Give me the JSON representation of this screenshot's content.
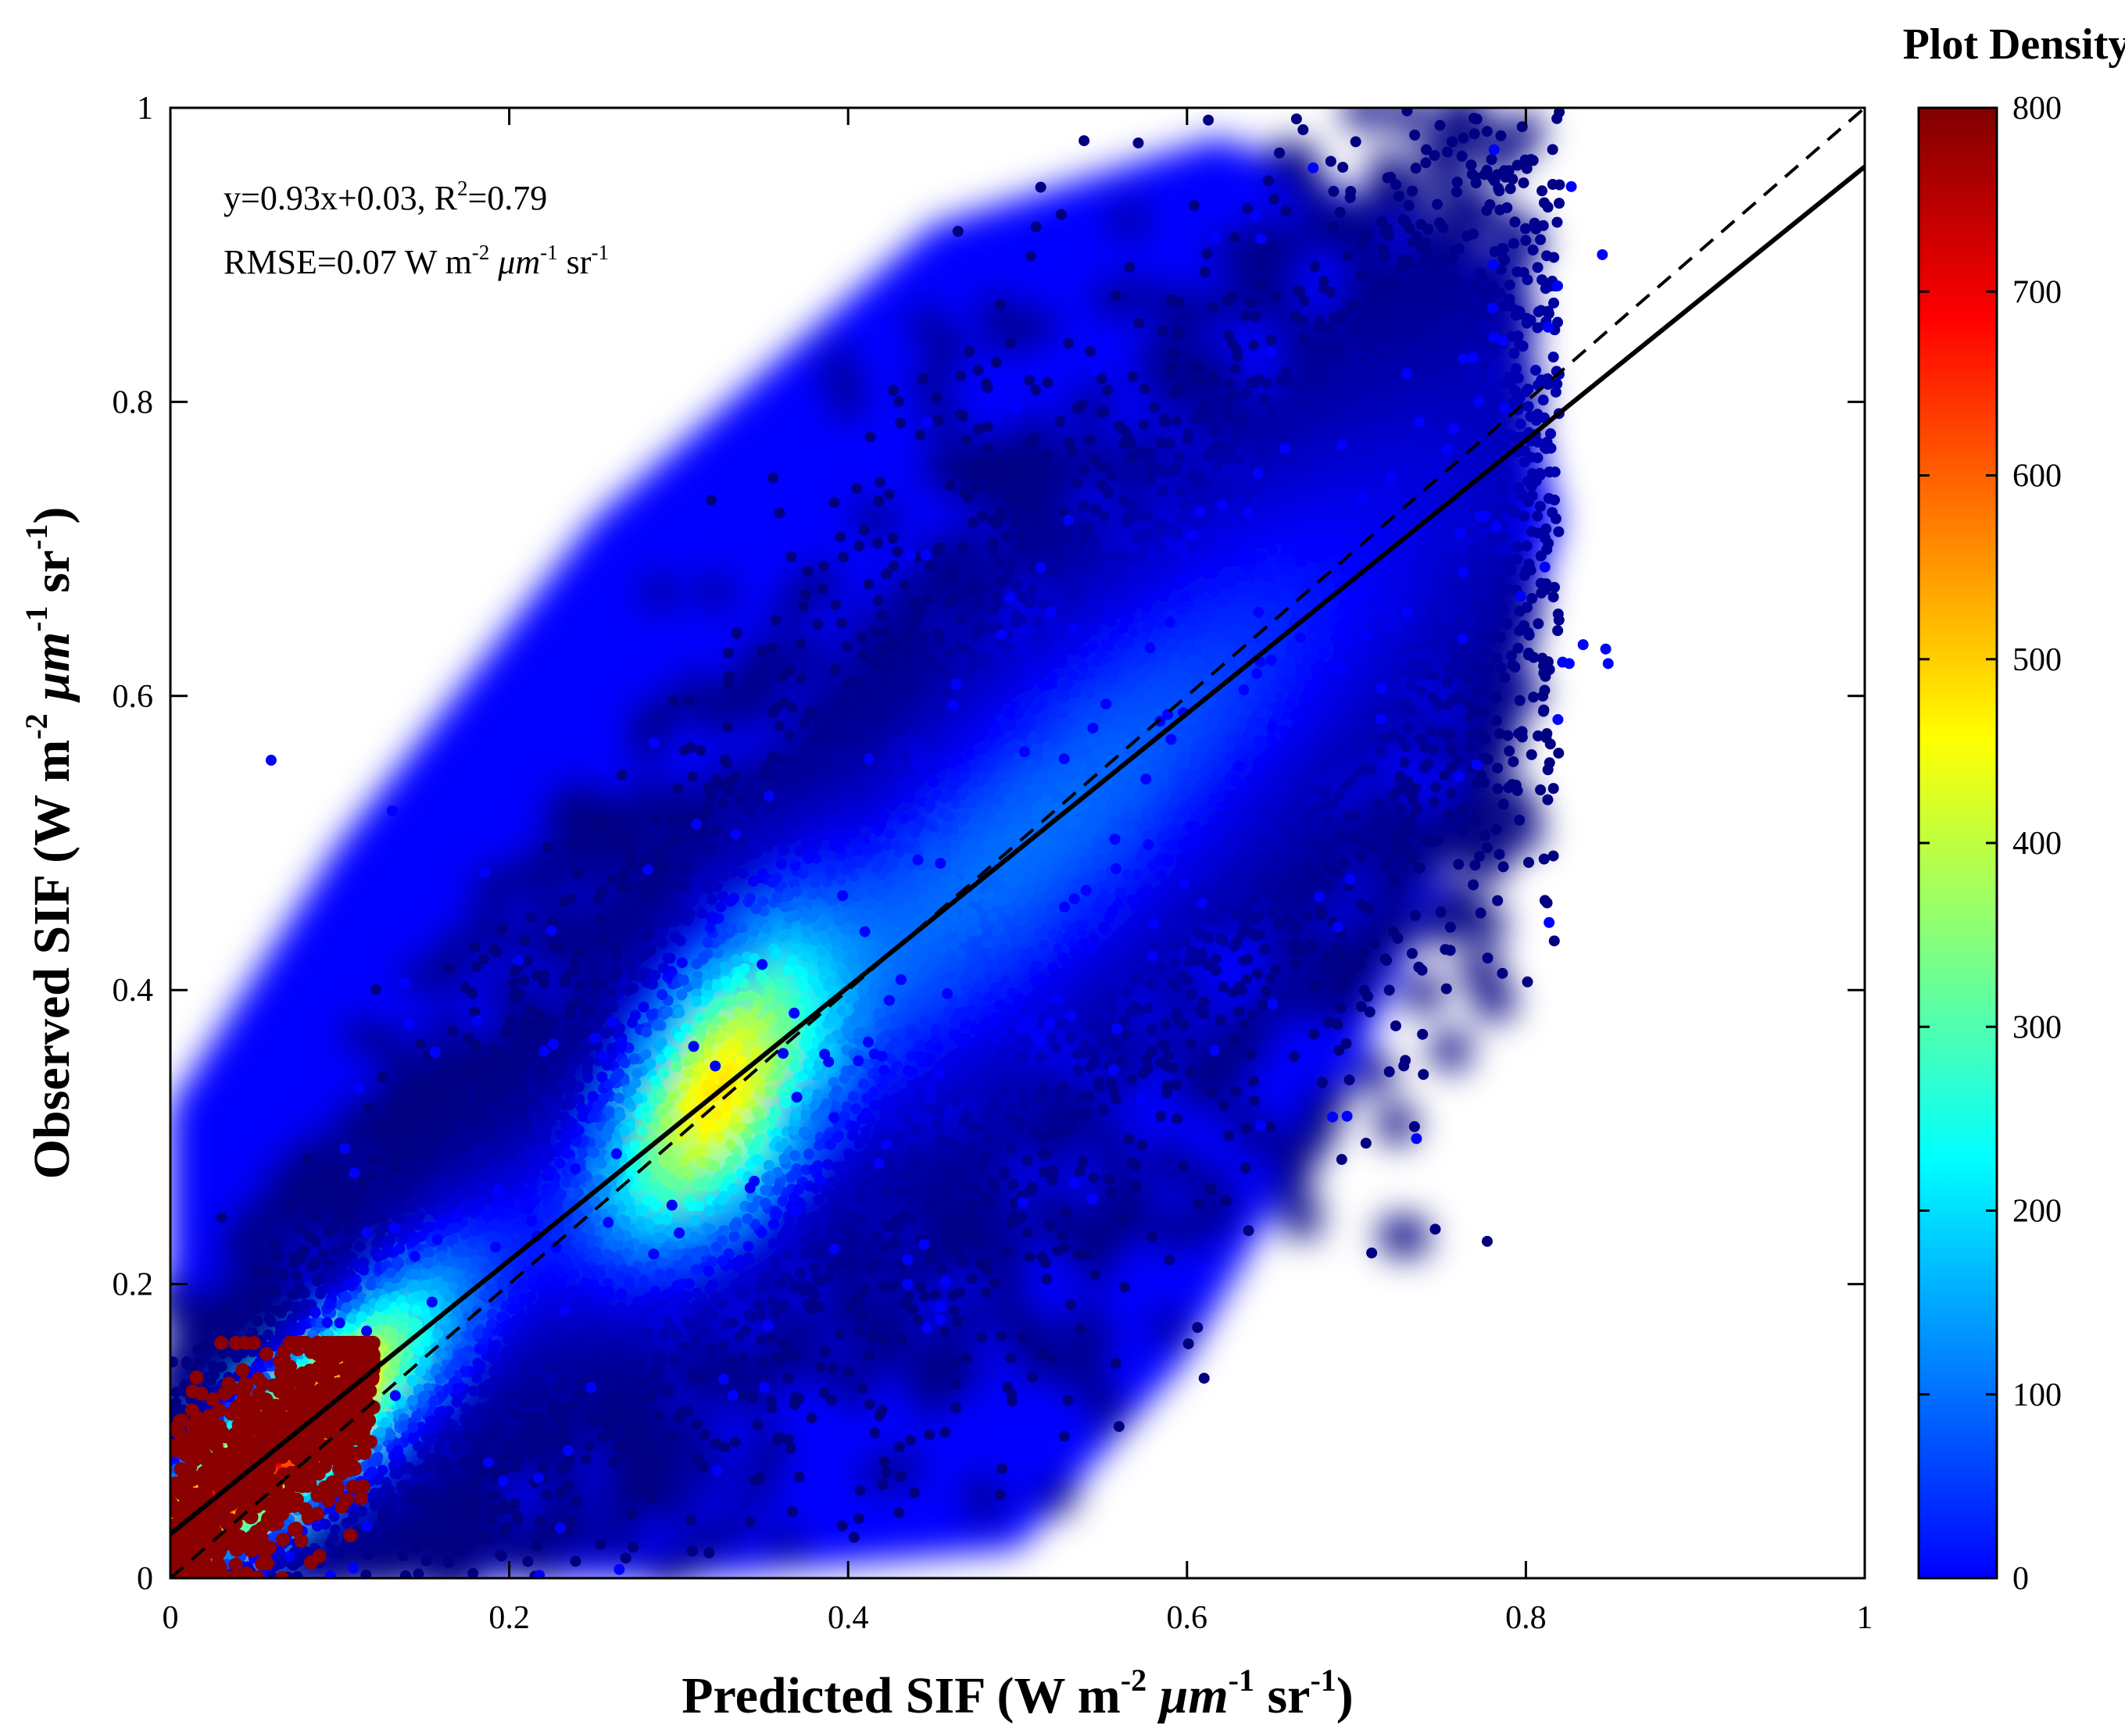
{
  "chart_data": {
    "type": "scatter",
    "subtype": "density-scatter",
    "xlabel": {
      "main": "Predicted SIF (W m",
      "sup1": "-2",
      "mid": " μm",
      "sup2": "-1",
      "end": " sr",
      "sup3": "-1",
      "close": ")"
    },
    "ylabel": {
      "main": "Observed SIF (W m",
      "sup1": "-2",
      "mid": " μm",
      "sup2": "-1",
      "end": " sr",
      "sup3": "-1",
      "close": ")"
    },
    "xlim": [
      0,
      1
    ],
    "ylim": [
      0,
      1
    ],
    "x_ticks": [
      0,
      0.2,
      0.4,
      0.6,
      0.8,
      1
    ],
    "x_tick_labels": [
      "0",
      "0.2",
      "0.4",
      "0.6",
      "0.8",
      "1"
    ],
    "y_ticks": [
      0,
      0.2,
      0.4,
      0.6,
      0.8,
      1
    ],
    "y_tick_labels": [
      "0",
      "0.2",
      "0.4",
      "0.6",
      "0.8",
      "1"
    ],
    "grid": false,
    "fit_line": {
      "slope": 0.93,
      "intercept": 0.03,
      "style": "solid",
      "color": "#000000"
    },
    "one_to_one_line": {
      "slope": 1,
      "intercept": 0,
      "style": "dashed",
      "color": "#000000"
    },
    "annotations": {
      "eq_text": "y=0.93x+0.03, R",
      "r2_sup": "2",
      "r2_text": "=0.79",
      "rmse_text": "RMSE=0.07 W m",
      "rmse_sup1": "-2",
      "rmse_mid": " μm",
      "rmse_sup2": "-1",
      "rmse_end": " sr",
      "rmse_sup3": "-1"
    },
    "colorbar": {
      "title": "Plot Density",
      "range": [
        0,
        800
      ],
      "ticks": [
        0,
        100,
        200,
        300,
        400,
        500,
        600,
        700,
        800
      ],
      "tick_labels": [
        "0",
        "100",
        "200",
        "300",
        "400",
        "500",
        "600",
        "700",
        "800"
      ],
      "colormap": "jet",
      "colors": [
        "#0000ff",
        "#0080ff",
        "#00ffff",
        "#80ff80",
        "#ffff00",
        "#ff8000",
        "#ff0000",
        "#800000"
      ]
    },
    "density_regions": [
      {
        "level": 800,
        "color": "#8b0000",
        "desc": "dense core near origin",
        "points": [
          [
            0,
            0
          ],
          [
            0.13,
            0.09
          ],
          [
            0.1,
            0.15
          ],
          [
            0,
            0.11
          ]
        ]
      },
      {
        "level": 500,
        "color": "#ffff00",
        "desc": "dense band along the line",
        "points": [
          [
            0.3,
            0.3
          ],
          [
            0.35,
            0.37
          ]
        ]
      }
    ]
  }
}
